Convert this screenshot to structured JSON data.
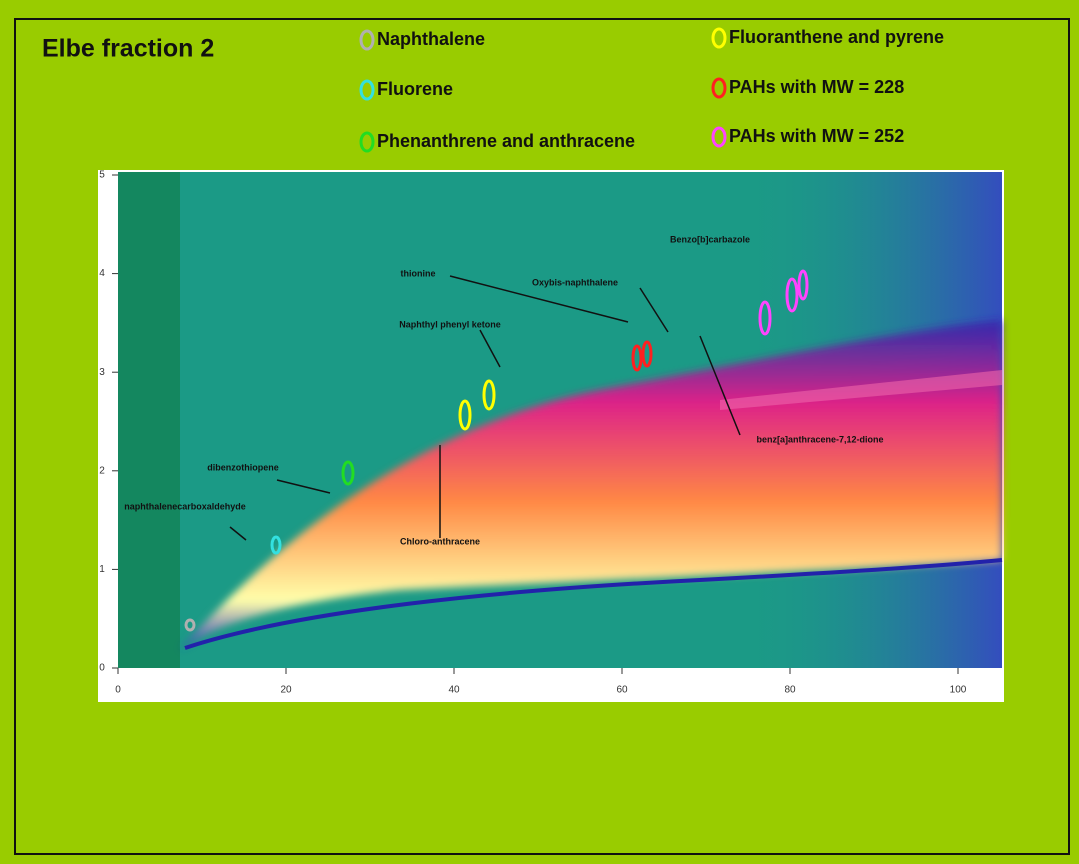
{
  "slide": {
    "title": "Elbe fraction 2",
    "legend": [
      {
        "label": "Naphthalene",
        "color": "#b0b0b0"
      },
      {
        "label": "Fluorene",
        "color": "#33e0e0"
      },
      {
        "label": "Phenanthrene and anthracene",
        "color": "#22dd22"
      },
      {
        "label": "Fluoranthene and pyrene",
        "color": "#ffff00"
      },
      {
        "label": "PAHs with MW = 228",
        "color": "#ff2020"
      },
      {
        "label": "PAHs with MW = 252",
        "color": "#ff44ff"
      }
    ],
    "plot": {
      "xticks": [
        0,
        20,
        40,
        60,
        80,
        100
      ],
      "yticks": [
        0,
        1,
        2,
        3,
        4,
        5
      ],
      "annotations": [
        "thionine",
        "Oxybis-naphthalene",
        "Benzo[b]carbazole",
        "Naphthyl phenyl ketone",
        "dibenzothiopene",
        "naphthalenecarboxaldehyde",
        "Chloro-anthracene",
        "benz[a]anthracene-7,12-dione"
      ]
    }
  }
}
